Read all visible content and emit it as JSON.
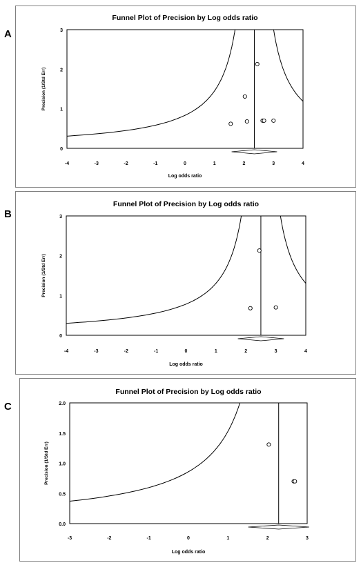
{
  "panel_letters": [
    "A",
    "B",
    "C"
  ],
  "chart_data": [
    {
      "type": "scatter",
      "title": "Funnel Plot of Precision by Log odds ratio",
      "xlabel": "Log odds ratio",
      "ylabel": "Precision  (1/Std Err)",
      "xlim": [
        -4,
        4
      ],
      "ylim": [
        0,
        3
      ],
      "xticks": [
        "-4",
        "-3",
        "-2",
        "-1",
        "0",
        "1",
        "2",
        "3",
        "4"
      ],
      "yticks": [
        "0",
        "1",
        "2",
        "3"
      ],
      "pooled_estimate": 2.35,
      "points": [
        [
          1.55,
          0.62
        ],
        [
          2.1,
          0.68
        ],
        [
          2.03,
          1.31
        ],
        [
          2.45,
          2.13
        ],
        [
          2.63,
          0.7
        ],
        [
          2.68,
          0.7
        ],
        [
          3.0,
          0.7
        ]
      ],
      "grid": false
    },
    {
      "type": "scatter",
      "title": "Funnel Plot of Precision by Log odds ratio",
      "xlabel": "Log odds ratio",
      "ylabel": "Precision  (1/Std Err)",
      "xlim": [
        -4,
        4
      ],
      "ylim": [
        0,
        3
      ],
      "xticks": [
        "-4",
        "-3",
        "-2",
        "-1",
        "0",
        "1",
        "2",
        "3",
        "4"
      ],
      "yticks": [
        "0",
        "1",
        "2",
        "3"
      ],
      "pooled_estimate": 2.5,
      "points": [
        [
          2.15,
          0.68
        ],
        [
          2.45,
          2.13
        ],
        [
          3.0,
          0.7
        ]
      ],
      "grid": false
    },
    {
      "type": "scatter",
      "title": "Funnel Plot of Precision by Log odds ratio",
      "xlabel": "Log odds ratio",
      "ylabel": "Precision  (1/Std Err)",
      "xlim": [
        -3,
        3
      ],
      "ylim": [
        0,
        2
      ],
      "xticks": [
        "-3",
        "-2",
        "-1",
        "0",
        "1",
        "2",
        "3"
      ],
      "yticks": [
        "0.0",
        "0.5",
        "1.0",
        "1.5",
        "2.0"
      ],
      "pooled_estimate": 2.28,
      "points": [
        [
          2.03,
          1.31
        ],
        [
          2.66,
          0.7
        ],
        [
          2.69,
          0.7
        ]
      ],
      "grid": false
    }
  ]
}
